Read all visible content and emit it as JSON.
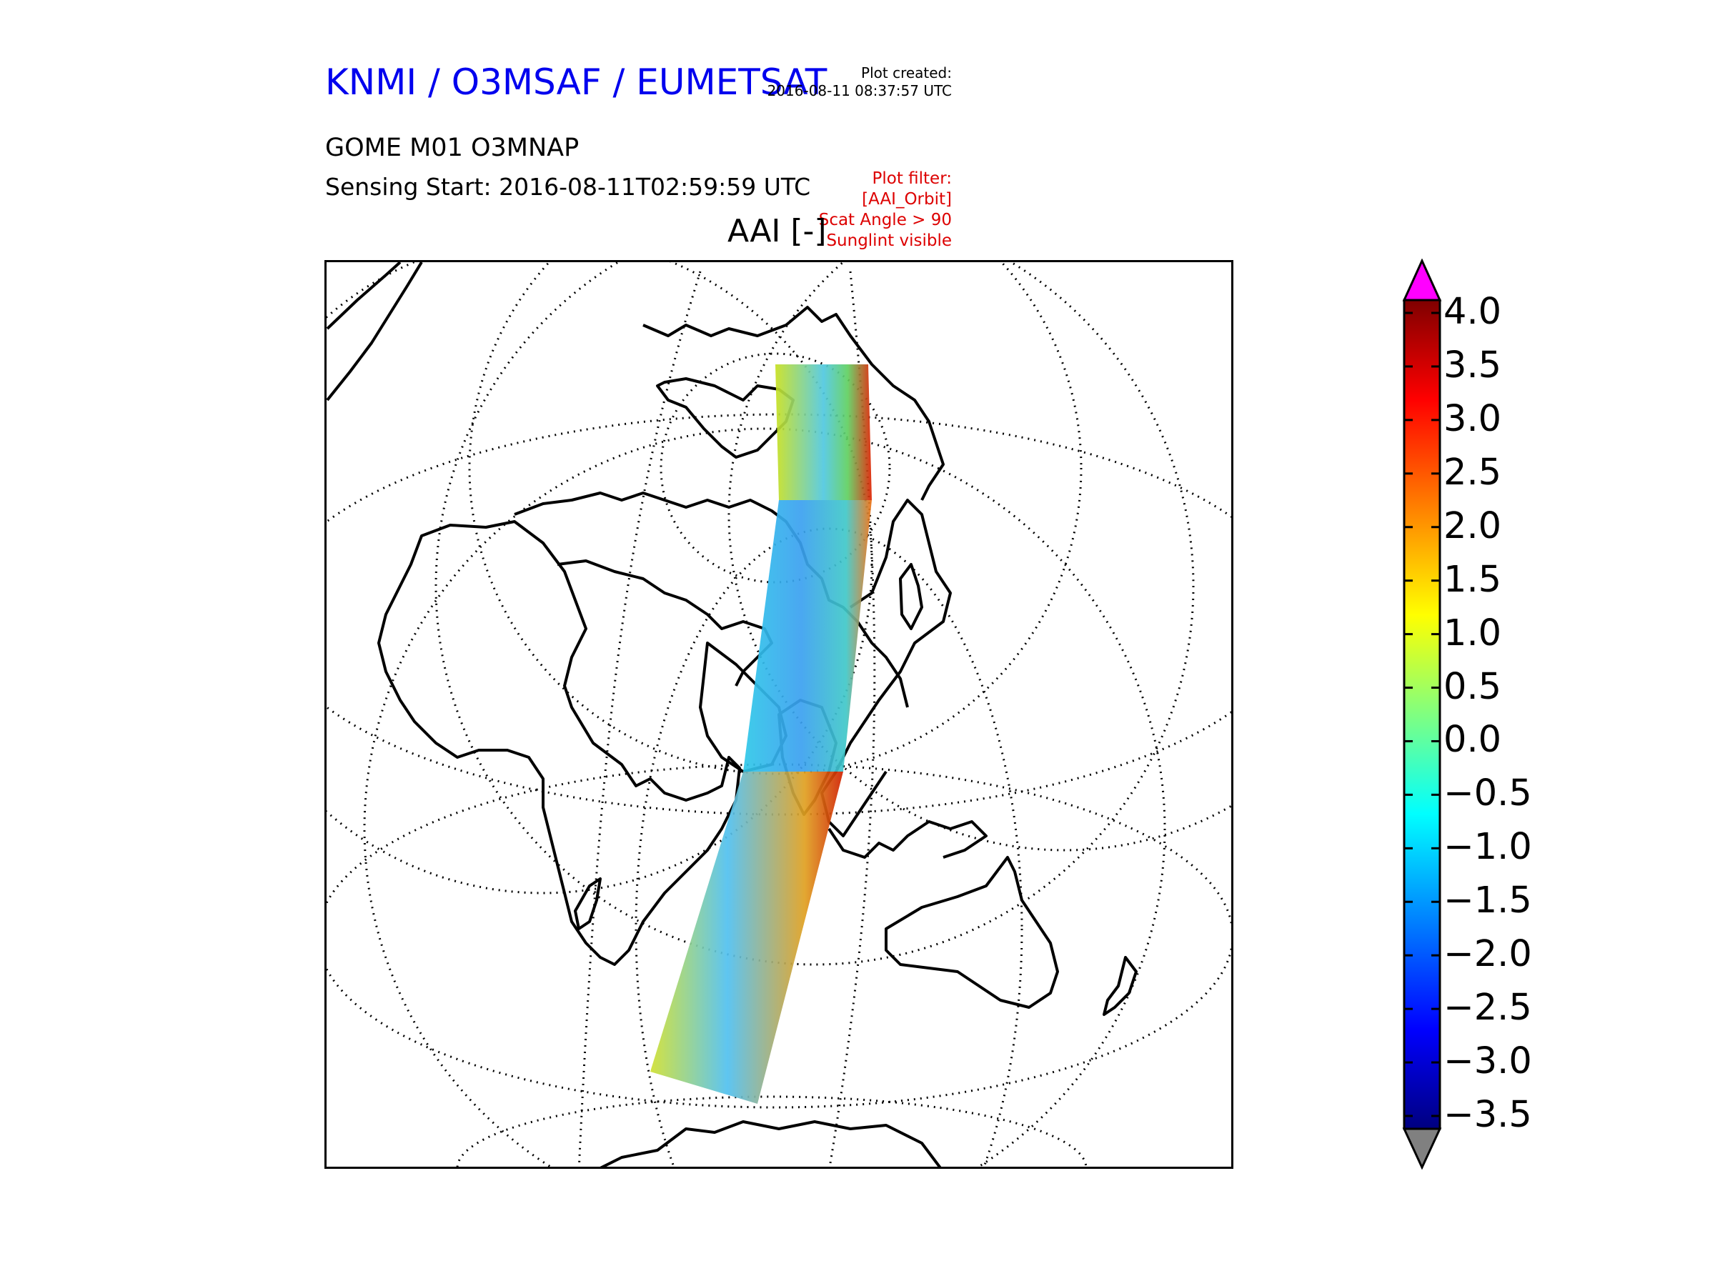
{
  "header": {
    "title": "KNMI / O3MSAF / EUMETSAT",
    "title_color": "#0000ee",
    "plot_created_label": "Plot created:",
    "plot_created_value": "2016-08-11 08:37:57 UTC",
    "product": "GOME M01 O3MNAP",
    "sensing_start": "Sensing Start: 2016-08-11T02:59:59 UTC"
  },
  "plot_filter": {
    "color": "#dd0000",
    "lines": [
      "Plot filter:",
      "[AAI_Orbit]",
      "Scat Angle > 90",
      "Sunglint visible"
    ]
  },
  "map": {
    "field_title": "AAI [-]",
    "projection": "orthographic (dotted graticule)",
    "coastline_color": "#000000"
  },
  "colorbar": {
    "ticks": [
      "4.0",
      "3.5",
      "3.0",
      "2.5",
      "2.0",
      "1.5",
      "1.0",
      "0.5",
      "0.0",
      "−0.5",
      "−1.0",
      "−1.5",
      "−2.0",
      "−2.5",
      "−3.0",
      "−3.5"
    ],
    "min": -3.5,
    "max": 4.0,
    "over_color": "#ff00ff",
    "under_color": "#808080",
    "colormap": "jet"
  }
}
